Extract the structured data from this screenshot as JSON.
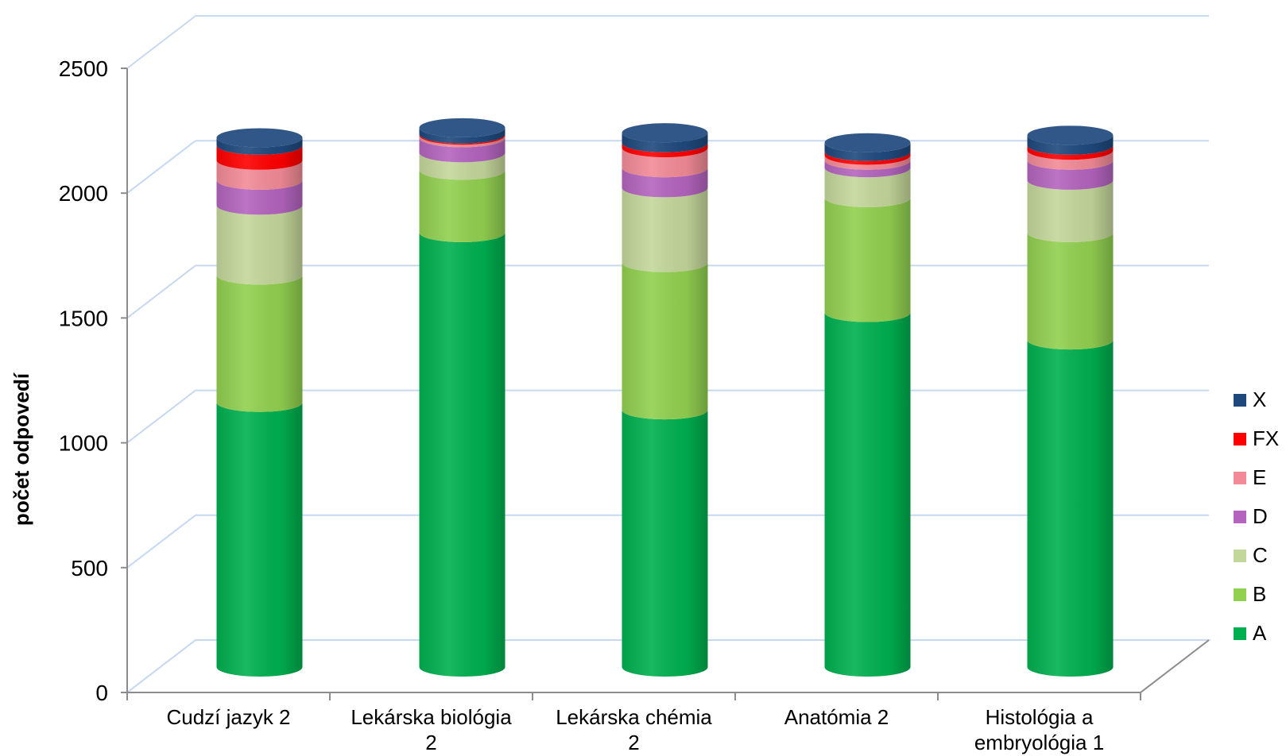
{
  "chart_data": {
    "type": "bar",
    "style": "3d-stacked-cylinder",
    "ylabel": "počet odpovedí",
    "xlabel": "",
    "ylim": [
      0,
      2500
    ],
    "yticks": [
      0,
      500,
      1000,
      1500,
      2000,
      2500
    ],
    "grid": true,
    "legend_position": "right",
    "categories": [
      [
        "Cudzí jazyk 2"
      ],
      [
        "Lekárska biológia",
        "2"
      ],
      [
        "Lekárska chémia",
        "2"
      ],
      [
        "Anatómia 2"
      ],
      [
        "Histológia a",
        "embryológia 1"
      ]
    ],
    "series": [
      {
        "name": "A",
        "color": "#00b050",
        "values": [
          1060,
          1740,
          1030,
          1420,
          1310
        ]
      },
      {
        "name": "B",
        "color": "#92d050",
        "values": [
          510,
          250,
          590,
          460,
          430
        ]
      },
      {
        "name": "C",
        "color": "#c4d79b",
        "values": [
          280,
          70,
          300,
          120,
          210
        ]
      },
      {
        "name": "D",
        "color": "#b464be",
        "values": [
          100,
          60,
          80,
          30,
          80
        ]
      },
      {
        "name": "E",
        "color": "#f28b97",
        "values": [
          80,
          10,
          80,
          20,
          40
        ]
      },
      {
        "name": "FX",
        "color": "#ff0000",
        "values": [
          60,
          5,
          20,
          15,
          20
        ]
      },
      {
        "name": "X",
        "color": "#1f497d",
        "values": [
          30,
          25,
          40,
          35,
          40
        ]
      }
    ]
  }
}
